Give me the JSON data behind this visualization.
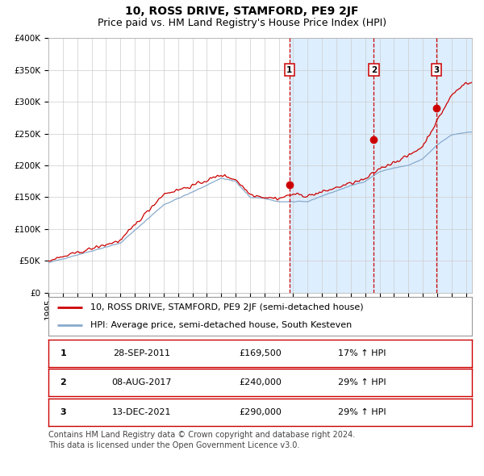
{
  "title": "10, ROSS DRIVE, STAMFORD, PE9 2JF",
  "subtitle": "Price paid vs. HM Land Registry's House Price Index (HPI)",
  "ylabel_ticks": [
    "£0",
    "£50K",
    "£100K",
    "£150K",
    "£200K",
    "£250K",
    "£300K",
    "£350K",
    "£400K"
  ],
  "ytick_values": [
    0,
    50000,
    100000,
    150000,
    200000,
    250000,
    300000,
    350000,
    400000
  ],
  "ylim": [
    0,
    400000
  ],
  "sale_dates": [
    "2011-09-28",
    "2017-08-08",
    "2021-12-13"
  ],
  "sale_prices": [
    169500,
    240000,
    290000
  ],
  "sale_labels": [
    "1",
    "2",
    "3"
  ],
  "sale_annotations": [
    "28-SEP-2011",
    "08-AUG-2017",
    "13-DEC-2021"
  ],
  "sale_prices_str": [
    "£169,500",
    "£240,000",
    "£290,000"
  ],
  "sale_hpi_str": [
    "17% ↑ HPI",
    "29% ↑ HPI",
    "29% ↑ HPI"
  ],
  "line1_color": "#cc0000",
  "line2_color": "#88aacc",
  "shade_color": "#ddeeff",
  "vline_color": "#cc0000",
  "background_color": "#ffffff",
  "grid_color": "#cccccc",
  "legend1_label": "10, ROSS DRIVE, STAMFORD, PE9 2JF (semi-detached house)",
  "legend2_label": "HPI: Average price, semi-detached house, South Kesteven",
  "footer": "Contains HM Land Registry data © Crown copyright and database right 2024.\nThis data is licensed under the Open Government Licence v3.0.",
  "title_fontsize": 10,
  "subtitle_fontsize": 9,
  "tick_fontsize": 7.5,
  "legend_fontsize": 8,
  "footer_fontsize": 7
}
